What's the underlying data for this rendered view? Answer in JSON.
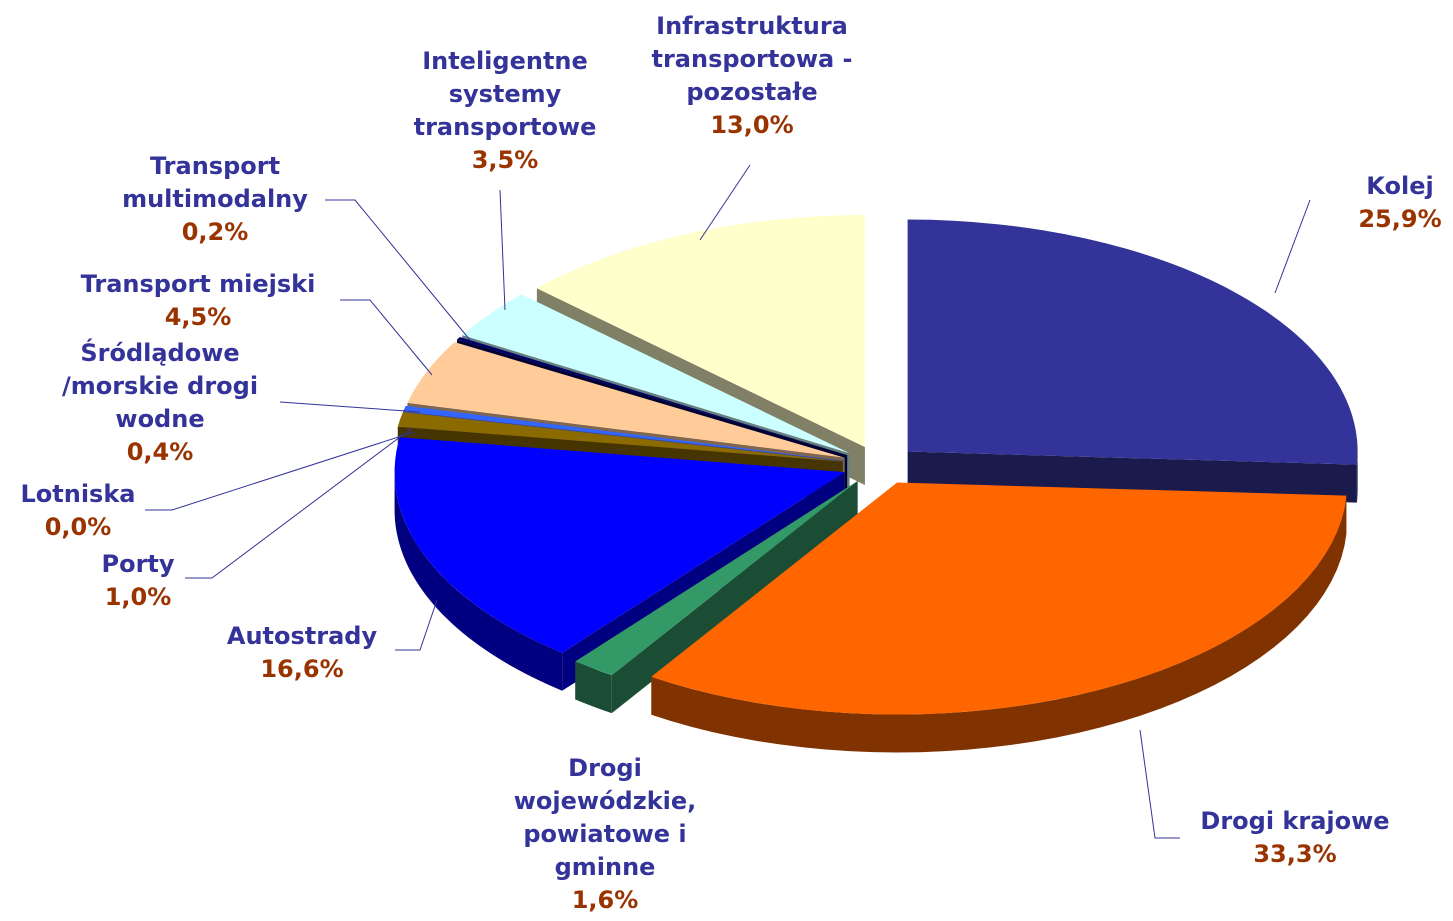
{
  "chart_data": {
    "type": "pie",
    "categories": [
      "Kolej",
      "Drogi krajowe",
      "Drogi wojewódzkie, powiatowe i gminne",
      "Autostrady",
      "Porty",
      "Lotniska",
      "Śródlądowe /morskie drogi wodne",
      "Transport miejski",
      "Transport multimodalny",
      "Inteligentne systemy transportowe",
      "Infrastruktura transportowa - pozostałe"
    ],
    "values": [
      25.9,
      33.3,
      1.6,
      16.6,
      1.0,
      0.0,
      0.4,
      4.5,
      0.2,
      3.5,
      13.0
    ],
    "value_labels": [
      "25,9%",
      "33,3%",
      "1,6%",
      "16,6%",
      "1,0%",
      "0,0%",
      "0,4%",
      "4,5%",
      "0,2%",
      "3,5%",
      "13,0%"
    ],
    "colors": [
      "#333399",
      "#ff6600",
      "#339966",
      "#0000ff",
      "#8b6a00",
      "#9999ff",
      "#3366ff",
      "#ffcc99",
      "#000066",
      "#ccffff",
      "#ffffcc"
    ]
  }
}
